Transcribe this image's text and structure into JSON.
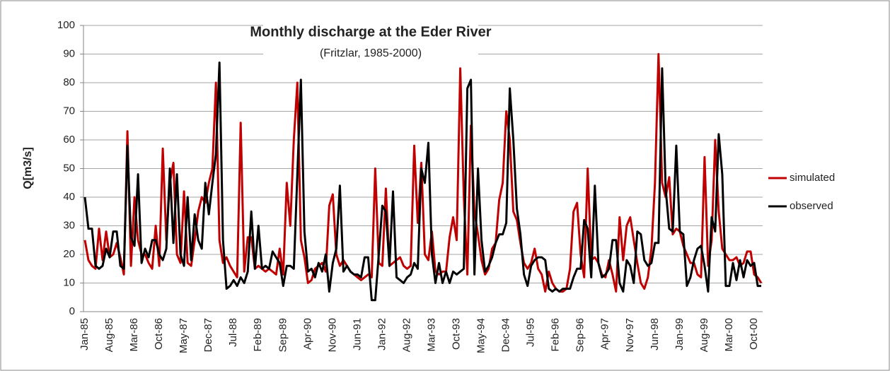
{
  "chart_data": {
    "type": "line",
    "title": "Monthly discharge at the Eder River",
    "subtitle": "(Fritzlar, 1985-2000)",
    "y_label": "Q[m3/s]",
    "ylim": [
      0,
      100
    ],
    "yticks": [
      0,
      10,
      20,
      30,
      40,
      50,
      60,
      70,
      80,
      90,
      100
    ],
    "grid": true,
    "legend": "right",
    "categories": [
      "Jan-85",
      null,
      null,
      null,
      null,
      null,
      null,
      "Aug-85",
      null,
      null,
      null,
      null,
      null,
      null,
      "Mar-86",
      null,
      null,
      null,
      null,
      null,
      null,
      "Oct-86",
      null,
      null,
      null,
      null,
      null,
      null,
      "May-87",
      null,
      null,
      null,
      null,
      null,
      null,
      "Dec-87",
      null,
      null,
      null,
      null,
      null,
      null,
      "Jul-88",
      null,
      null,
      null,
      null,
      null,
      null,
      "Feb-89",
      null,
      null,
      null,
      null,
      null,
      null,
      "Sep-89",
      null,
      null,
      null,
      null,
      null,
      null,
      "Apr-90",
      null,
      null,
      null,
      null,
      null,
      null,
      "Nov-90",
      null,
      null,
      null,
      null,
      null,
      null,
      "Jun-91",
      null,
      null,
      null,
      null,
      null,
      null,
      "Jan-92",
      null,
      null,
      null,
      null,
      null,
      null,
      "Aug-92",
      null,
      null,
      null,
      null,
      null,
      null,
      "Mar-93",
      null,
      null,
      null,
      null,
      null,
      null,
      "Oct-93",
      null,
      null,
      null,
      null,
      null,
      null,
      "May-94",
      null,
      null,
      null,
      null,
      null,
      null,
      "Dec-94",
      null,
      null,
      null,
      null,
      null,
      null,
      "Jul-95",
      null,
      null,
      null,
      null,
      null,
      null,
      "Feb-96",
      null,
      null,
      null,
      null,
      null,
      null,
      "Sep-96",
      null,
      null,
      null,
      null,
      null,
      null,
      "Apr-97",
      null,
      null,
      null,
      null,
      null,
      null,
      "Nov-97",
      null,
      null,
      null,
      null,
      null,
      null,
      "Jun-98",
      null,
      null,
      null,
      null,
      null,
      null,
      "Jan-99",
      null,
      null,
      null,
      null,
      null,
      null,
      "Aug-99",
      null,
      null,
      null,
      null,
      null,
      null,
      "Mar-00",
      null,
      null,
      null,
      null,
      null,
      null,
      "Oct-00",
      null,
      null
    ],
    "series": [
      {
        "name": "simulated",
        "color": "#c00000",
        "values": [
          25,
          18,
          16,
          15,
          29,
          18,
          28,
          19,
          20,
          24,
          19,
          13,
          63,
          16,
          40,
          25,
          20,
          20,
          17,
          15,
          30,
          16,
          57,
          25,
          45,
          52,
          20,
          17,
          42,
          17,
          16,
          25,
          35,
          40,
          38,
          45,
          50,
          80,
          25,
          17,
          19,
          16,
          14,
          12,
          66,
          14,
          26,
          26,
          15,
          16,
          15,
          14,
          15,
          14,
          13,
          22,
          13,
          45,
          30,
          60,
          80,
          25,
          19,
          10,
          11,
          15,
          16,
          17,
          14,
          37,
          41,
          20,
          16,
          18,
          16,
          14,
          13,
          12,
          11,
          12,
          13,
          12,
          50,
          17,
          16,
          43,
          16,
          17,
          18,
          19,
          16,
          15,
          16,
          58,
          31,
          52,
          20,
          18,
          28,
          14,
          13,
          14,
          14,
          26,
          33,
          25,
          85,
          40,
          13,
          65,
          35,
          27,
          18,
          13,
          15,
          22,
          24,
          39,
          45,
          70,
          60,
          35,
          32,
          24,
          17,
          15,
          17,
          22,
          15,
          13,
          7,
          14,
          10,
          8,
          7,
          7,
          8,
          15,
          35,
          38,
          20,
          12,
          50,
          18,
          19,
          17,
          13,
          12,
          18,
          13,
          7,
          33,
          18,
          30,
          33,
          25,
          17,
          10,
          8,
          12,
          22,
          45,
          90,
          45,
          40,
          47,
          27,
          29,
          28,
          23,
          20,
          17,
          17,
          13,
          12,
          54,
          16,
          25,
          60,
          35,
          22,
          20,
          18,
          18,
          19,
          16,
          17,
          21,
          21,
          13,
          12,
          10
        ]
      },
      {
        "name": "observed",
        "color": "#000000",
        "values": [
          40,
          29,
          29,
          16,
          15,
          16,
          22,
          19,
          28,
          28,
          16,
          15,
          58,
          26,
          23,
          48,
          17,
          22,
          19,
          25,
          25,
          20,
          18,
          22,
          50,
          24,
          48,
          20,
          16,
          40,
          18,
          34,
          25,
          22,
          45,
          34,
          45,
          55,
          87,
          25,
          8,
          9,
          11,
          9,
          12,
          10,
          14,
          35,
          15,
          30,
          15,
          16,
          15,
          21,
          19,
          17,
          9,
          16,
          16,
          15,
          48,
          81,
          28,
          14,
          15,
          12,
          17,
          14,
          20,
          7,
          17,
          22,
          44,
          14,
          16,
          14,
          13,
          13,
          12,
          19,
          19,
          4,
          4,
          20,
          37,
          35,
          16,
          42,
          12,
          11,
          10,
          12,
          13,
          17,
          15,
          50,
          45,
          59,
          20,
          10,
          17,
          10,
          14,
          10,
          14,
          13,
          14,
          15,
          78,
          81,
          13,
          50,
          25,
          14,
          16,
          19,
          24,
          27,
          27,
          31,
          78,
          60,
          36,
          27,
          13,
          9,
          16,
          18,
          19,
          19,
          18,
          8,
          7,
          8,
          7,
          8,
          8,
          8,
          12,
          15,
          15,
          32,
          29,
          12,
          44,
          17,
          12,
          13,
          15,
          25,
          25,
          10,
          7,
          18,
          16,
          10,
          28,
          27,
          18,
          16,
          17,
          24,
          24,
          85,
          43,
          29,
          28,
          58,
          28,
          27,
          9,
          12,
          18,
          22,
          23,
          16,
          7,
          33,
          28,
          62,
          48,
          9,
          9,
          17,
          11,
          18,
          12,
          18,
          16,
          17,
          9,
          9
        ]
      }
    ]
  }
}
